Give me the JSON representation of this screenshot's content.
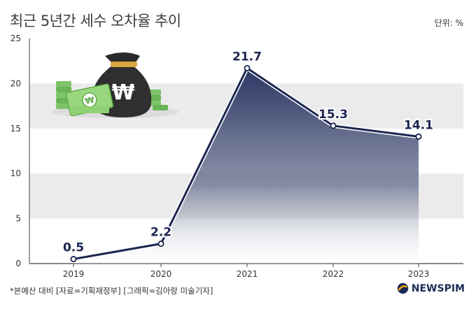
{
  "header": {
    "title": "최근 5년간 세수 오차율 추이",
    "unit": "단위: %"
  },
  "footer": {
    "note": "*본예산 대비 [자료=기획재정부] [그래픽=김아랑 미술기자]",
    "logo": "NEWSPIM"
  },
  "illustration": {
    "bag_symbol": "₩",
    "bill_symbol": "₩"
  },
  "colors": {
    "line": "#1b2450",
    "area_top": "#2b3663",
    "band": "#ebebeb",
    "logo": "#1a2b55"
  },
  "chart_data": {
    "type": "area",
    "x": [
      "2019",
      "2020",
      "2021",
      "2022",
      "2023"
    ],
    "values": [
      0.5,
      2.2,
      21.7,
      15.3,
      14.1
    ],
    "labels": [
      "0.5",
      "2.2",
      "21.7",
      "15.3",
      "14.1"
    ],
    "yticks": [
      "0",
      "5",
      "10",
      "15",
      "20",
      "25"
    ],
    "ylim": [
      0,
      25
    ],
    "grid": "alternating bands"
  }
}
